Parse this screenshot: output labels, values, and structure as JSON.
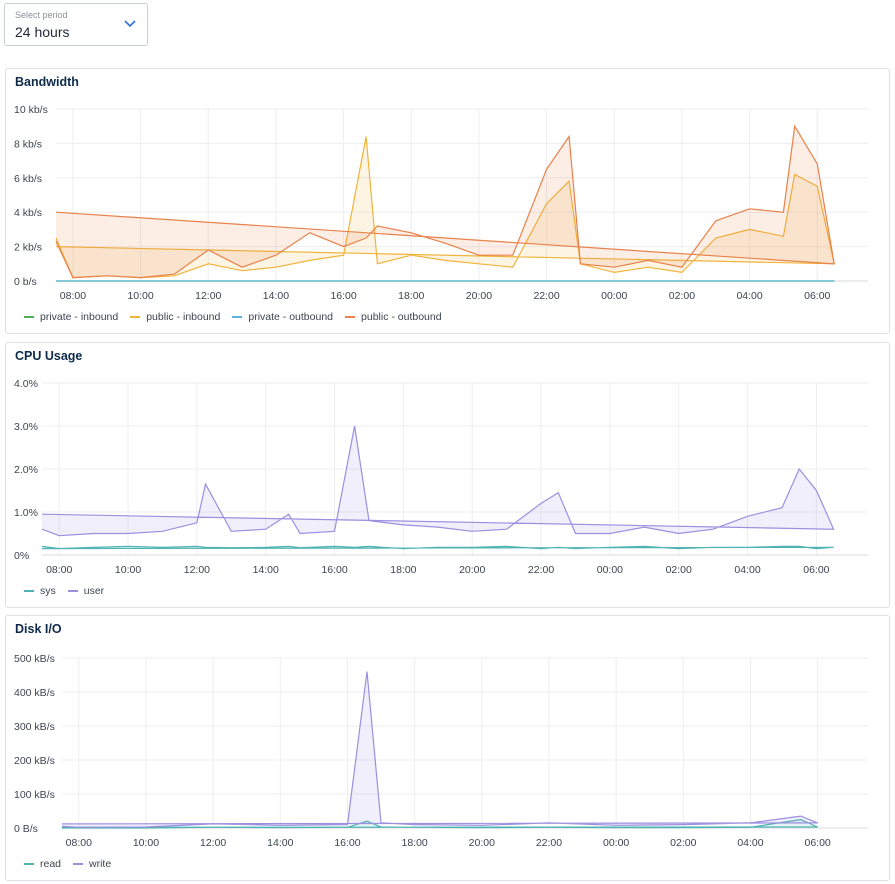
{
  "period": {
    "label": "Select period",
    "value": "24 hours"
  },
  "x_ticks": [
    "08:00",
    "10:00",
    "12:00",
    "14:00",
    "16:00",
    "18:00",
    "20:00",
    "22:00",
    "00:00",
    "02:00",
    "04:00",
    "06:00"
  ],
  "charts": [
    {
      "title": "Bandwidth",
      "legend": [
        {
          "name": "private - inbound",
          "color": "#4caf50"
        },
        {
          "name": "public - inbound",
          "color": "#f0b43c"
        },
        {
          "name": "private - outbound",
          "color": "#5ab4dc"
        },
        {
          "name": "public - outbound",
          "color": "#e8824a"
        }
      ],
      "y_ticks": [
        "10 kb/s",
        "8 kb/s",
        "6 kb/s",
        "4 kb/s",
        "2 kb/s",
        "0 b/s"
      ]
    },
    {
      "title": "CPU Usage",
      "legend": [
        {
          "name": "sys",
          "color": "#4fb3b3"
        },
        {
          "name": "user",
          "color": "#9b8fe0"
        }
      ],
      "y_ticks": [
        "4.0%",
        "3.0%",
        "2.0%",
        "1.0%",
        "0%"
      ]
    },
    {
      "title": "Disk I/O",
      "legend": [
        {
          "name": "read",
          "color": "#4fb3b3"
        },
        {
          "name": "write",
          "color": "#9b8fe0"
        }
      ],
      "y_ticks": [
        "500 kB/s",
        "400 kB/s",
        "300 kB/s",
        "200 kB/s",
        "100 kB/s",
        "0 B/s"
      ]
    }
  ],
  "chart_data": [
    {
      "type": "area",
      "title": "Bandwidth",
      "x": [
        "07:30",
        "08:00",
        "09:00",
        "10:00",
        "11:00",
        "12:00",
        "13:00",
        "14:00",
        "15:00",
        "16:00",
        "16:40",
        "17:00",
        "18:00",
        "19:00",
        "20:00",
        "21:00",
        "22:00",
        "22:40",
        "23:00",
        "00:00",
        "01:00",
        "02:00",
        "03:00",
        "04:00",
        "05:00",
        "05:20",
        "06:00",
        "06:30",
        "07:30"
      ],
      "ylim": [
        0,
        10
      ],
      "series": [
        {
          "name": "private - inbound",
          "values": [
            0,
            0,
            0,
            0,
            0,
            0,
            0,
            0,
            0,
            0,
            0,
            0,
            0,
            0,
            0,
            0,
            0,
            0,
            0,
            0,
            0,
            0,
            0,
            0,
            0,
            0,
            0,
            0,
            0
          ]
        },
        {
          "name": "public - inbound",
          "values": [
            2.5,
            0.2,
            0.3,
            0.2,
            0.3,
            1.0,
            0.6,
            0.8,
            1.2,
            1.5,
            8.4,
            1.0,
            1.5,
            1.2,
            1.0,
            0.8,
            4.5,
            5.8,
            1.0,
            0.5,
            0.8,
            0.5,
            2.5,
            3.0,
            2.6,
            6.2,
            5.5,
            1.0,
            2.0
          ]
        },
        {
          "name": "private - outbound",
          "values": [
            0,
            0,
            0,
            0,
            0,
            0,
            0,
            0,
            0,
            0,
            0,
            0,
            0,
            0,
            0,
            0,
            0,
            0,
            0,
            0,
            0,
            0,
            0,
            0,
            0,
            0,
            0,
            0,
            0
          ]
        },
        {
          "name": "public - outbound",
          "values": [
            2.3,
            0.2,
            0.3,
            0.2,
            0.4,
            1.8,
            0.8,
            1.5,
            2.8,
            2.0,
            2.5,
            3.2,
            2.8,
            2.2,
            1.5,
            1.5,
            6.5,
            8.4,
            1.0,
            0.8,
            1.2,
            0.8,
            3.5,
            4.2,
            4.0,
            9.0,
            6.8,
            1.0,
            4.0
          ]
        }
      ]
    },
    {
      "type": "area",
      "title": "CPU Usage",
      "x": [
        "07:30",
        "08:00",
        "09:00",
        "10:00",
        "11:00",
        "12:00",
        "12:15",
        "13:00",
        "14:00",
        "14:40",
        "15:00",
        "16:00",
        "16:35",
        "17:00",
        "18:00",
        "19:00",
        "20:00",
        "21:00",
        "22:00",
        "22:30",
        "23:00",
        "00:00",
        "01:00",
        "02:00",
        "03:00",
        "04:00",
        "05:00",
        "05:30",
        "06:00",
        "06:30",
        "07:30"
      ],
      "ylim": [
        0,
        4.0
      ],
      "series": [
        {
          "name": "sys",
          "values": [
            0.2,
            0.15,
            0.18,
            0.2,
            0.18,
            0.2,
            0.18,
            0.17,
            0.18,
            0.2,
            0.17,
            0.2,
            0.18,
            0.2,
            0.15,
            0.18,
            0.18,
            0.2,
            0.15,
            0.18,
            0.15,
            0.18,
            0.2,
            0.15,
            0.18,
            0.18,
            0.2,
            0.2,
            0.15,
            0.18,
            0.15
          ]
        },
        {
          "name": "user",
          "values": [
            0.6,
            0.45,
            0.5,
            0.5,
            0.55,
            0.75,
            1.65,
            0.55,
            0.6,
            0.95,
            0.5,
            0.55,
            3.0,
            0.8,
            0.7,
            0.65,
            0.55,
            0.6,
            1.2,
            1.45,
            0.5,
            0.5,
            0.65,
            0.5,
            0.6,
            0.9,
            1.1,
            2.0,
            1.5,
            0.6,
            0.95
          ]
        }
      ]
    },
    {
      "type": "area",
      "title": "Disk I/O",
      "x": [
        "07:30",
        "08:00",
        "10:00",
        "12:00",
        "14:00",
        "16:00",
        "16:35",
        "17:00",
        "18:00",
        "20:00",
        "22:00",
        "00:00",
        "02:00",
        "04:00",
        "05:30",
        "06:00",
        "07:30"
      ],
      "ylim": [
        0,
        500
      ],
      "series": [
        {
          "name": "read",
          "values": [
            0,
            0,
            0,
            2,
            1,
            2,
            20,
            3,
            2,
            1,
            2,
            1,
            1,
            2,
            25,
            3,
            2
          ]
        },
        {
          "name": "write",
          "values": [
            5,
            2,
            3,
            12,
            8,
            10,
            460,
            15,
            10,
            8,
            15,
            8,
            10,
            15,
            35,
            15,
            12
          ]
        }
      ]
    }
  ]
}
